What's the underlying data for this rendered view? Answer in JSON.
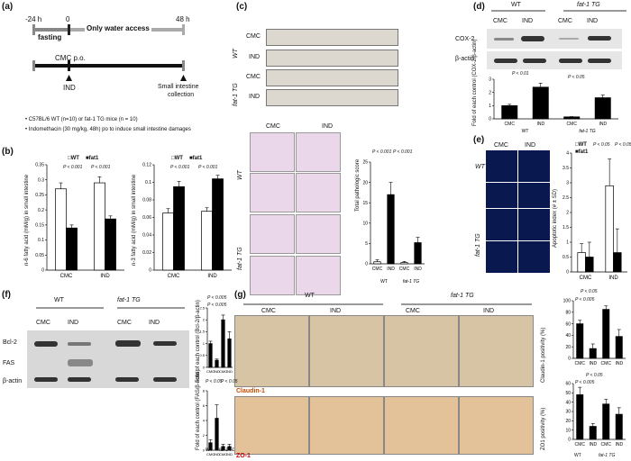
{
  "panels": {
    "a": "(a)",
    "b": "(b)",
    "c": "(c)",
    "d": "(d)",
    "e": "(e)",
    "f": "(f)",
    "g": "(g)"
  },
  "a": {
    "t_neg24": "-24 h",
    "t_0": "0",
    "t_48": "48 h",
    "fasting": "fasting",
    "water": "Only water access",
    "cmc": "CMC p.o.",
    "ind": "IND",
    "collect1": "Small intestine",
    "collect2": "collection",
    "note1": "• C57BL/6 WT (n=10) or  fat-1 TG mice (n = 10)",
    "note2": "• Indomethacin (30 mg/kg, 48h) po to induce small intestine damages"
  },
  "b": {
    "legend_wt": "WT",
    "legend_fat1": "fat1",
    "ylabel1": "n-6 fatty acid (mM/g) in small intestine",
    "ylabel2": "n-3 fatty acid (mM/g) in small intestine",
    "p1": "P < 0.001",
    "p2": "P < 0.001"
  },
  "c": {
    "wt": "WT",
    "tg": "fat-1 TG",
    "cmc": "CMC",
    "ind": "IND",
    "ylabel": "Total pathologic score",
    "xwt": "WT",
    "xtg": "fat-1 TG",
    "p1": "P < 0.001",
    "p2": "P < 0.001"
  },
  "d": {
    "wt": "WT",
    "tg": "fat-1 TG",
    "cmc": "CMC",
    "ind": "IND",
    "cox2": "COX-2",
    "bactin": "β-actin",
    "ylabel": "Fold of each control (COX-2/β-actin)",
    "p1": "P < 0.01",
    "p2": "P < 0.05",
    "xwt": "WT",
    "xtg": "fat-1 TG"
  },
  "e": {
    "cmc": "CMC",
    "ind": "IND",
    "wt": "WT",
    "tg": "fat-1 TG",
    "legend_wt": "WT",
    "legend_fat1": "fat1",
    "ylabel": "Apoptotic index (# ± SD)",
    "p1": "P < 0.05",
    "p2": "P < 0.05"
  },
  "f": {
    "wt": "WT",
    "tg": "fat-1 TG",
    "cmc": "CMC",
    "ind": "IND",
    "bcl2": "Bcl-2",
    "fas": "FAS",
    "bactin": "β-actin",
    "ylabel1": "Fold of each control (Bcl-2/β-actin)",
    "ylabel2": "Fold of each control (FAS/β-actin)",
    "p1": "P < 0.005",
    "p2": "P < 0.005",
    "p3": "P < 0.05",
    "p4": "P < 0.05",
    "xwt": "WT",
    "xtg": "fat-1 TG"
  },
  "g": {
    "wt": "WT",
    "tg": "fat-1 TG",
    "cmc": "CMC",
    "ind": "IND",
    "claudin": "Claudin-1",
    "zo1": "ZO-1",
    "ylabel1": "Claudin-1 positivity (%)",
    "ylabel2": "ZO1 positivity (%)",
    "p1": "P < 0.005",
    "p2": "P < 0.05",
    "p3": "P < 0.005",
    "p4": "P < 0.05",
    "xwt": "WT",
    "xtg": "fat-1 TG"
  },
  "chart_data": [
    {
      "id": "b1",
      "type": "bar",
      "categories": [
        "CMC",
        "IND"
      ],
      "series": [
        {
          "name": "WT",
          "values": [
            0.27,
            0.29
          ],
          "err": [
            0.02,
            0.02
          ]
        },
        {
          "name": "fat1",
          "values": [
            0.14,
            0.17
          ],
          "err": [
            0.01,
            0.01
          ]
        }
      ],
      "ylim": [
        0,
        0.35
      ],
      "yticks": [
        0,
        0.05,
        0.1,
        0.15,
        0.2,
        0.25,
        0.3,
        0.35
      ]
    },
    {
      "id": "b2",
      "type": "bar",
      "categories": [
        "CMC",
        "IND"
      ],
      "series": [
        {
          "name": "WT",
          "values": [
            0.065,
            0.067
          ],
          "err": [
            0.005,
            0.004
          ]
        },
        {
          "name": "fat1",
          "values": [
            0.095,
            0.104
          ],
          "err": [
            0.006,
            0.004
          ]
        }
      ],
      "ylim": [
        0,
        0.12
      ],
      "yticks": [
        0,
        0.02,
        0.04,
        0.06,
        0.08,
        0.1,
        0.12
      ]
    },
    {
      "id": "c",
      "type": "bar",
      "categories": [
        "CMC",
        "IND",
        "CMC",
        "IND"
      ],
      "values": [
        0.5,
        17,
        0.3,
        5.2
      ],
      "err": [
        0.5,
        3,
        0.3,
        1.3
      ],
      "fill": [
        "white",
        "black",
        "white",
        "black"
      ],
      "ylim": [
        0,
        25
      ],
      "yticks": [
        0,
        5,
        10,
        15,
        20,
        25
      ]
    },
    {
      "id": "d",
      "type": "bar",
      "categories": [
        "CMC",
        "IND",
        "CMC",
        "IND"
      ],
      "values": [
        1,
        2.4,
        0.15,
        1.6
      ],
      "err": [
        0.1,
        0.3,
        0.02,
        0.2
      ],
      "fill": [
        "black",
        "black",
        "black",
        "black"
      ],
      "ylim": [
        0,
        3
      ],
      "yticks": [
        0,
        1,
        2,
        3
      ]
    },
    {
      "id": "e",
      "type": "bar",
      "categories": [
        "CMC",
        "IND"
      ],
      "series": [
        {
          "name": "WT",
          "values": [
            0.65,
            2.9
          ],
          "err": [
            0.3,
            0.9
          ]
        },
        {
          "name": "fat1",
          "values": [
            0.5,
            0.65
          ],
          "err": [
            0.5,
            0.8
          ]
        }
      ],
      "ylim": [
        0,
        4
      ],
      "yticks": [
        0,
        0.5,
        1,
        1.5,
        2,
        2.5,
        3,
        3.5,
        4
      ]
    },
    {
      "id": "f1",
      "type": "bar",
      "categories": [
        "CMC",
        "IND",
        "CMC",
        "IND"
      ],
      "values": [
        1,
        0.3,
        2,
        1.2
      ],
      "err": [
        0.1,
        0.05,
        0.2,
        0.3
      ],
      "fill": [
        "black",
        "black",
        "black",
        "black"
      ],
      "ylim": [
        0,
        2.5
      ],
      "yticks": [
        0,
        0.5,
        1,
        1.5,
        2,
        2.5
      ]
    },
    {
      "id": "f2",
      "type": "bar",
      "categories": [
        "CMC",
        "IND",
        "CMC",
        "IND"
      ],
      "values": [
        1,
        4.3,
        0.5,
        0.5
      ],
      "err": [
        0.4,
        1.8,
        0.3,
        0.3
      ],
      "fill": [
        "black",
        "black",
        "black",
        "black"
      ],
      "ylim": [
        0,
        8
      ],
      "yticks": [
        0,
        2,
        4,
        6,
        8
      ]
    },
    {
      "id": "g1",
      "type": "bar",
      "categories": [
        "CMC",
        "IND",
        "CMC",
        "IND"
      ],
      "values": [
        60,
        17,
        85,
        38
      ],
      "err": [
        6,
        8,
        6,
        12
      ],
      "fill": [
        "black",
        "black",
        "black",
        "black"
      ],
      "ylim": [
        0,
        100
      ],
      "yticks": [
        0,
        20,
        40,
        60,
        80,
        100
      ]
    },
    {
      "id": "g2",
      "type": "bar",
      "categories": [
        "CMC",
        "IND",
        "CMC",
        "IND"
      ],
      "values": [
        48,
        14,
        38,
        27
      ],
      "err": [
        8,
        3,
        5,
        7
      ],
      "fill": [
        "black",
        "black",
        "black",
        "black"
      ],
      "ylim": [
        0,
        60
      ],
      "yticks": [
        0,
        10,
        20,
        30,
        40,
        50,
        60
      ]
    }
  ]
}
